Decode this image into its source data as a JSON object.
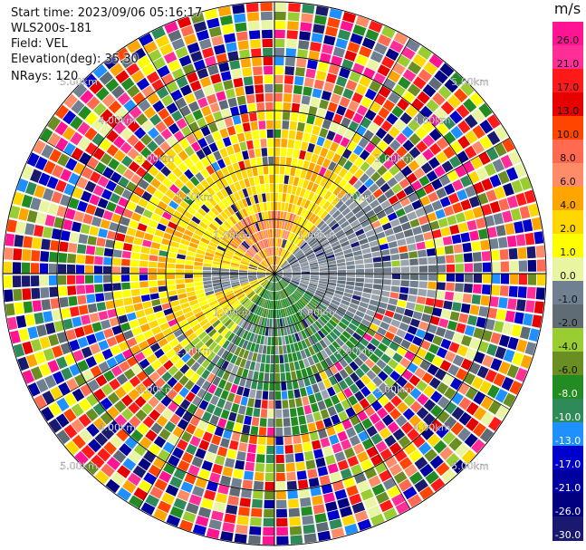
{
  "header": {
    "start_time": "Start time: 2023/09/06 05:16:17",
    "site": "WLS200s-181",
    "field": "Field: VEL",
    "elevation": "Elevation(deg): 35.30",
    "nrays": "NRays: 120"
  },
  "colorbar": {
    "unit": "m/s",
    "ticks": [
      "26.0",
      "21.0",
      "17.0",
      "13.0",
      "10.0",
      "8.0",
      "6.0",
      "4.0",
      "2.0",
      "1.0",
      "0.0",
      "-1.0",
      "-2.0",
      "-4.0",
      "-6.0",
      "-8.0",
      "-10.0",
      "-13.0",
      "-17.0",
      "-21.0",
      "-26.0",
      "-30.0"
    ],
    "colors": [
      "#ff1493",
      "#ff2f97",
      "#ff1a1a",
      "#e60000",
      "#ff4500",
      "#ff6a50",
      "#ff8c69",
      "#ffa500",
      "#ffd700",
      "#ffff00",
      "#e9f5a0",
      "#708090",
      "#5f6b75",
      "#9acd32",
      "#6b8e23",
      "#228b22",
      "#2e8b57",
      "#1e90ff",
      "#0000cd",
      "#0000a0",
      "#000080",
      "#191970"
    ]
  },
  "range_rings": [
    "1.00km",
    "2.00km",
    "3.00km",
    "4.00km",
    "5.00km"
  ],
  "icons": {
    "ppi": "radar-ppi-image"
  }
}
